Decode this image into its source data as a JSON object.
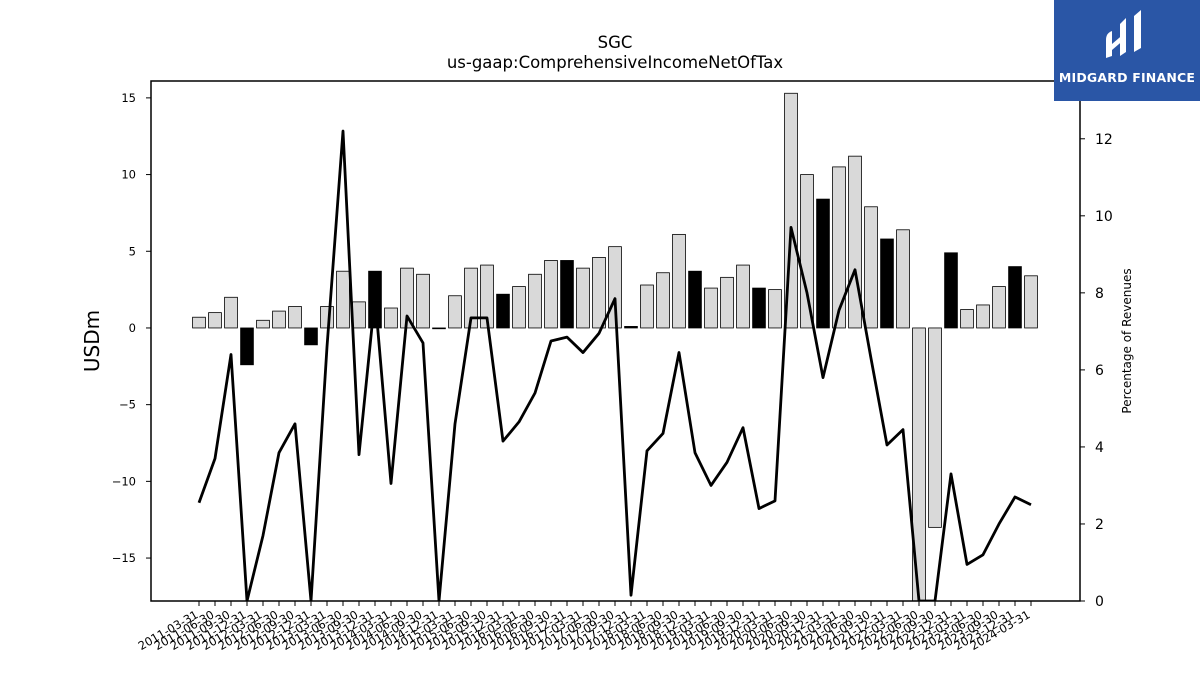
{
  "logo": {
    "text": "MIDGARD FINANCE",
    "icon": "midgard-logo-icon",
    "background": "#2a56a6"
  },
  "chart_data": {
    "type": "bar",
    "title": "SGC",
    "subtitle": "us-gaap:ComprehensiveIncomeNetOfTax",
    "ylabel": "USDm",
    "ylabel_right": "Percentage of Revenues",
    "ylim": [
      -17.8,
      16.1
    ],
    "ylim_right": [
      0,
      13.5
    ],
    "yticks": [
      -15,
      -10,
      -5,
      0,
      5,
      10,
      15
    ],
    "yticks_right": [
      0,
      2,
      4,
      6,
      8,
      10,
      12
    ],
    "categories": [
      "2011-03-31",
      "2011-06-30",
      "2011-09-30",
      "2011-12-31",
      "2012-03-31",
      "2012-06-30",
      "2012-09-30",
      "2012-12-31",
      "2013-03-31",
      "2013-06-30",
      "2013-09-30",
      "2013-12-31",
      "2014-03-31",
      "2014-06-30",
      "2014-09-30",
      "2014-12-31",
      "2015-03-31",
      "2015-06-30",
      "2015-09-30",
      "2015-12-31",
      "2016-03-31",
      "2016-06-30",
      "2016-09-30",
      "2016-12-31",
      "2017-03-31",
      "2017-06-30",
      "2017-09-30",
      "2017-12-31",
      "2018-03-31",
      "2018-06-30",
      "2018-09-30",
      "2018-12-31",
      "2019-03-31",
      "2019-06-30",
      "2019-09-30",
      "2019-12-31",
      "2020-03-31",
      "2020-06-30",
      "2020-09-30",
      "2020-12-31",
      "2021-03-31",
      "2021-06-30",
      "2021-09-30",
      "2021-12-31",
      "2022-03-31",
      "2022-06-30",
      "2022-09-30",
      "2022-12-31",
      "2023-03-31",
      "2023-06-30",
      "2023-09-30",
      "2023-12-31",
      "2024-03-31"
    ],
    "series": [
      {
        "kind": "bar",
        "axis": "left",
        "values": [
          0.7,
          1.0,
          2.0,
          -2.4,
          0.5,
          1.1,
          1.4,
          -1.1,
          1.4,
          3.7,
          1.7,
          3.7,
          1.3,
          3.9,
          3.5,
          0.0,
          2.1,
          3.9,
          4.1,
          2.2,
          2.7,
          3.5,
          4.4,
          4.4,
          3.9,
          4.6,
          5.3,
          0.1,
          2.8,
          3.6,
          6.1,
          3.7,
          2.6,
          3.3,
          4.1,
          2.6,
          2.5,
          15.3,
          10.0,
          8.4,
          10.5,
          11.2,
          7.9,
          5.8,
          6.4,
          -17.8,
          -13.0,
          4.9,
          1.2,
          1.5,
          2.7,
          4.0,
          3.4
        ],
        "highlight": [
          false,
          false,
          false,
          true,
          false,
          false,
          false,
          true,
          false,
          false,
          false,
          true,
          false,
          false,
          false,
          true,
          false,
          false,
          false,
          true,
          false,
          false,
          false,
          true,
          false,
          false,
          false,
          true,
          false,
          false,
          false,
          true,
          false,
          false,
          false,
          true,
          false,
          false,
          false,
          true,
          false,
          false,
          false,
          true,
          false,
          false,
          false,
          true,
          false,
          false,
          false,
          true,
          false
        ],
        "color": "#d9d9d9",
        "highlight_color": "#000000"
      },
      {
        "kind": "line",
        "axis": "right",
        "values": [
          2.55,
          3.7,
          6.4,
          0.0,
          1.7,
          3.85,
          4.6,
          0.0,
          6.6,
          12.2,
          3.8,
          7.9,
          3.05,
          7.4,
          6.7,
          0.0,
          4.6,
          7.35,
          7.35,
          4.15,
          4.65,
          5.4,
          6.75,
          6.85,
          6.45,
          6.95,
          7.85,
          0.15,
          3.9,
          4.35,
          6.45,
          3.85,
          3.0,
          3.6,
          4.5,
          2.4,
          2.6,
          9.7,
          8.0,
          5.8,
          7.55,
          8.6,
          6.3,
          4.05,
          4.45,
          0.0,
          0.0,
          3.3,
          0.95,
          1.2,
          2.0,
          2.7,
          2.5
        ],
        "color": "#000000"
      }
    ],
    "grid": false
  }
}
